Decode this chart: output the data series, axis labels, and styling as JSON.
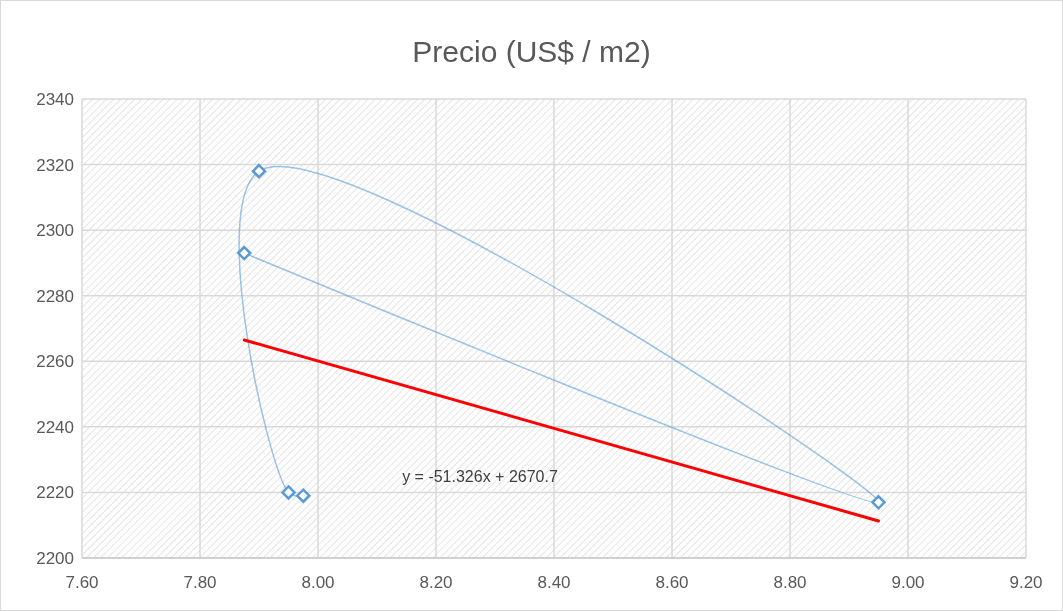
{
  "chart_data": {
    "type": "line",
    "title": "Precio (US$ / m2)",
    "xlim": [
      7.6,
      9.2
    ],
    "xticks": [
      {
        "value": 7.6,
        "label": "7.60"
      },
      {
        "value": 7.8,
        "label": "7.80"
      },
      {
        "value": 8.0,
        "label": "8.00"
      },
      {
        "value": 8.2,
        "label": "8.20"
      },
      {
        "value": 8.4,
        "label": "8.40"
      },
      {
        "value": 8.6,
        "label": "8.60"
      },
      {
        "value": 8.8,
        "label": "8.80"
      },
      {
        "value": 9.0,
        "label": "9.00"
      },
      {
        "value": 9.2,
        "label": "9.20"
      }
    ],
    "ylim": [
      2200,
      2340
    ],
    "yticks": [
      2200,
      2220,
      2240,
      2260,
      2280,
      2300,
      2320,
      2340
    ],
    "grid": true,
    "series": [
      {
        "color": "#5b9bd5",
        "marker": "diamond",
        "line_style": "solid",
        "x": [
          7.875,
          8.95,
          7.9,
          7.95,
          7.975
        ],
        "values": [
          2293,
          2217,
          2318,
          2220,
          2219
        ]
      },
      {
        "color": "#ff0000",
        "marker": "none",
        "line_style": "solid",
        "x": [
          7.875,
          8.95
        ],
        "values": [
          2266.5,
          2211.3
        ]
      }
    ],
    "annotations": [
      "y = -51.326x + 2670.7"
    ]
  }
}
